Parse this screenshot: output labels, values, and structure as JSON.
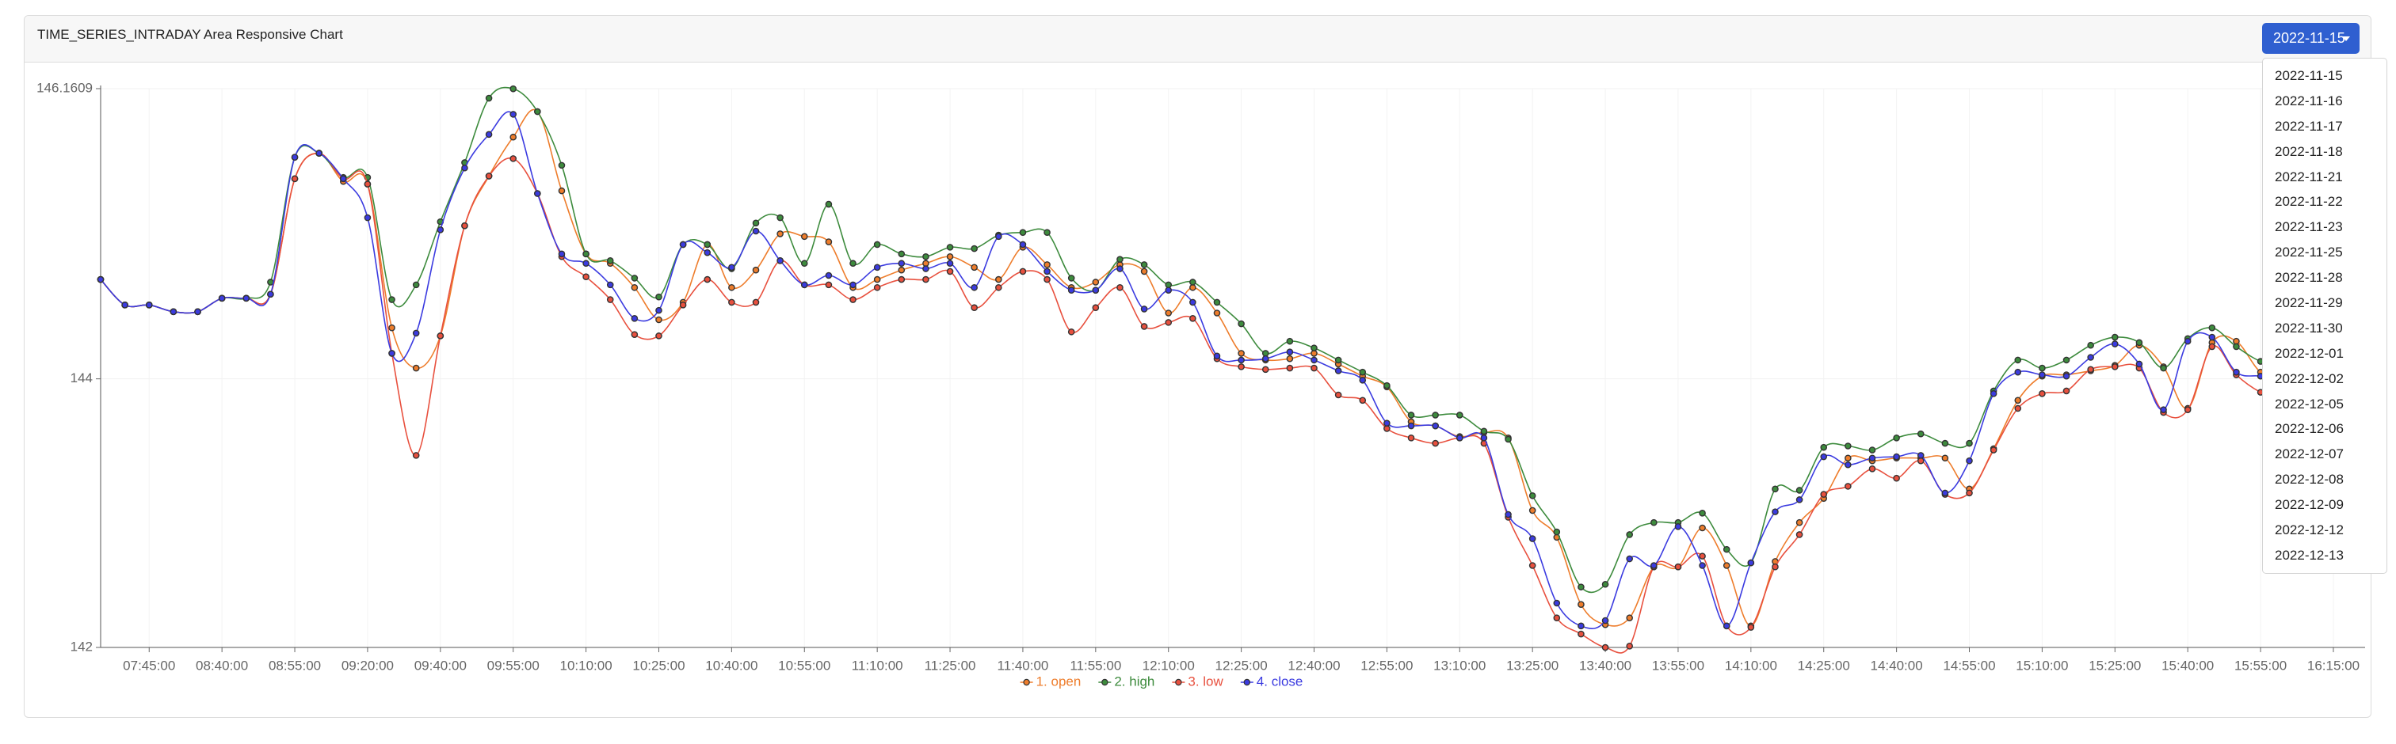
{
  "header": {
    "title": "TIME_SERIES_INTRADAY Area Responsive Chart"
  },
  "dropdown": {
    "selected": "2022-11-15",
    "items": [
      "2022-11-15",
      "2022-11-16",
      "2022-11-17",
      "2022-11-18",
      "2022-11-21",
      "2022-11-22",
      "2022-11-23",
      "2022-11-25",
      "2022-11-28",
      "2022-11-29",
      "2022-11-30",
      "2022-12-01",
      "2022-12-02",
      "2022-12-05",
      "2022-12-06",
      "2022-12-07",
      "2022-12-08",
      "2022-12-09",
      "2022-12-12",
      "2022-12-13"
    ]
  },
  "chart_data": {
    "type": "line",
    "grid": true,
    "legend": "bottom",
    "categories": [
      null,
      null,
      "07:45:00",
      null,
      null,
      "08:40:00",
      null,
      null,
      "08:55:00",
      null,
      null,
      "09:20:00",
      null,
      null,
      "09:40:00",
      null,
      null,
      "09:55:00",
      null,
      null,
      "10:10:00",
      null,
      null,
      "10:25:00",
      null,
      null,
      "10:40:00",
      null,
      null,
      "10:55:00",
      null,
      null,
      "11:10:00",
      null,
      null,
      "11:25:00",
      null,
      null,
      "11:40:00",
      null,
      null,
      "11:55:00",
      null,
      null,
      "12:10:00",
      null,
      null,
      "12:25:00",
      null,
      null,
      "12:40:00",
      null,
      null,
      "12:55:00",
      null,
      null,
      "13:10:00",
      null,
      null,
      "13:25:00",
      null,
      null,
      "13:40:00",
      null,
      null,
      "13:55:00",
      null,
      null,
      "14:10:00",
      null,
      null,
      "14:25:00",
      null,
      null,
      "14:40:00",
      null,
      null,
      "14:55:00",
      null,
      null,
      "15:10:00",
      null,
      null,
      "15:25:00",
      null,
      null,
      "15:40:00",
      null,
      null,
      "15:55:00",
      null,
      null,
      "16:15:00",
      null
    ],
    "ylim": [
      142,
      146.1609
    ],
    "yticks": [
      142,
      144,
      146.1609
    ],
    "series": [
      {
        "name": "1. open",
        "color": "#ee7d2c",
        "values": [
          144.74,
          144.55,
          144.55,
          144.5,
          144.5,
          144.6,
          144.6,
          144.63,
          145.49,
          145.68,
          145.47,
          145.45,
          144.38,
          144.08,
          144.32,
          145.14,
          145.51,
          145.8,
          145.99,
          145.4,
          144.93,
          144.86,
          144.68,
          144.44,
          144.57,
          145.0,
          144.68,
          144.81,
          145.08,
          145.06,
          145.02,
          144.68,
          144.74,
          144.81,
          144.86,
          144.91,
          144.83,
          144.74,
          144.98,
          144.85,
          144.68,
          144.72,
          144.85,
          144.8,
          144.49,
          144.68,
          144.49,
          144.19,
          144.14,
          144.15,
          144.19,
          144.11,
          144.02,
          143.94,
          143.68,
          143.65,
          143.57,
          143.6,
          143.56,
          143.02,
          142.82,
          142.32,
          142.17,
          142.22,
          142.6,
          142.6,
          142.89,
          142.61,
          142.16,
          142.64,
          142.93,
          143.11,
          143.41,
          143.39,
          143.41,
          143.41,
          143.41,
          143.18,
          143.48,
          143.84,
          144.02,
          144.03,
          144.06,
          144.1,
          144.25,
          144.09,
          143.78,
          144.27,
          144.28,
          144.05,
          144.0,
          143.98,
          144.02,
          143.98
        ]
      },
      {
        "name": "2. high",
        "color": "#3d8b3d",
        "values": [
          144.74,
          144.55,
          144.55,
          144.5,
          144.5,
          144.6,
          144.6,
          144.72,
          145.65,
          145.68,
          145.5,
          145.5,
          144.59,
          144.7,
          145.17,
          145.61,
          146.09,
          146.16,
          145.99,
          145.59,
          144.93,
          144.88,
          144.75,
          144.61,
          145.0,
          145.0,
          144.82,
          145.16,
          145.2,
          144.86,
          145.3,
          144.86,
          145.0,
          144.93,
          144.91,
          144.98,
          144.97,
          145.07,
          145.09,
          145.09,
          144.75,
          144.66,
          144.89,
          144.85,
          144.7,
          144.72,
          144.57,
          144.41,
          144.19,
          144.28,
          144.23,
          144.14,
          144.05,
          143.95,
          143.73,
          143.73,
          143.73,
          143.61,
          143.55,
          143.13,
          142.86,
          142.45,
          142.47,
          142.84,
          142.93,
          142.93,
          143.0,
          142.73,
          142.63,
          143.18,
          143.17,
          143.49,
          143.5,
          143.47,
          143.56,
          143.59,
          143.52,
          143.52,
          143.91,
          144.14,
          144.08,
          144.14,
          144.25,
          144.31,
          144.27,
          144.08,
          144.3,
          144.38,
          144.24,
          144.13,
          144.09,
          144.05,
          144.09,
          144.07
        ]
      },
      {
        "name": "3. low",
        "color": "#e8503e",
        "values": [
          144.74,
          144.55,
          144.55,
          144.5,
          144.5,
          144.6,
          144.6,
          144.63,
          145.49,
          145.68,
          145.49,
          145.45,
          144.19,
          143.43,
          144.32,
          145.14,
          145.51,
          145.64,
          145.38,
          144.91,
          144.76,
          144.59,
          144.33,
          144.32,
          144.55,
          144.74,
          144.57,
          144.57,
          144.88,
          144.7,
          144.7,
          144.59,
          144.68,
          144.74,
          144.74,
          144.8,
          144.53,
          144.68,
          144.8,
          144.74,
          144.35,
          144.53,
          144.68,
          144.39,
          144.42,
          144.45,
          144.15,
          144.09,
          144.07,
          144.08,
          144.08,
          143.88,
          143.84,
          143.63,
          143.56,
          143.52,
          143.56,
          143.52,
          142.97,
          142.61,
          142.22,
          142.1,
          142.0,
          142.01,
          142.6,
          142.6,
          142.68,
          142.16,
          142.15,
          142.6,
          142.84,
          143.14,
          143.2,
          143.33,
          143.26,
          143.39,
          143.14,
          143.15,
          143.47,
          143.78,
          143.89,
          143.91,
          144.07,
          144.09,
          144.08,
          143.75,
          143.77,
          144.24,
          144.03,
          143.9,
          143.84,
          143.8,
          143.84,
          143.82
        ]
      },
      {
        "name": "4. close",
        "color": "#3b3be0",
        "values": [
          144.74,
          144.55,
          144.55,
          144.5,
          144.5,
          144.6,
          144.6,
          144.63,
          145.65,
          145.68,
          145.49,
          145.2,
          144.19,
          144.34,
          145.11,
          145.57,
          145.82,
          145.97,
          145.38,
          144.93,
          144.86,
          144.7,
          144.45,
          144.51,
          145.0,
          144.94,
          144.83,
          145.1,
          144.88,
          144.7,
          144.77,
          144.7,
          144.83,
          144.86,
          144.82,
          144.86,
          144.68,
          145.06,
          145.0,
          144.8,
          144.66,
          144.66,
          144.82,
          144.52,
          144.66,
          144.57,
          144.17,
          144.14,
          144.15,
          144.2,
          144.14,
          144.06,
          143.99,
          143.67,
          143.65,
          143.65,
          143.56,
          143.56,
          142.99,
          142.81,
          142.33,
          142.16,
          142.2,
          142.66,
          142.61,
          142.9,
          142.61,
          142.16,
          142.63,
          143.01,
          143.1,
          143.42,
          143.36,
          143.41,
          143.42,
          143.43,
          143.15,
          143.39,
          143.89,
          144.05,
          144.03,
          144.02,
          144.16,
          144.26,
          144.11,
          143.77,
          144.28,
          144.31,
          144.05,
          144.02,
          143.98,
          143.95,
          144.0,
          143.98
        ]
      }
    ]
  }
}
